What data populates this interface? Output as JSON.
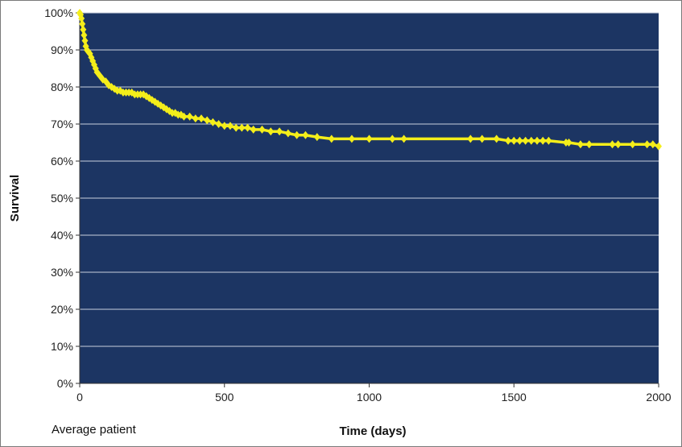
{
  "chart_data": {
    "type": "line",
    "title": "",
    "xlabel": "Time (days)",
    "ylabel": "Survival",
    "annotation": "Average patient",
    "xlim": [
      0,
      2000
    ],
    "ylim": [
      0,
      100
    ],
    "x_ticks": [
      0,
      500,
      1000,
      1500,
      2000
    ],
    "y_ticks": [
      0,
      10,
      20,
      30,
      40,
      50,
      60,
      70,
      80,
      90,
      100
    ],
    "x_tick_labels": [
      "0",
      "500",
      "1000",
      "1500",
      "2000"
    ],
    "y_tick_labels": [
      "0%",
      "10%",
      "20%",
      "30%",
      "40%",
      "50%",
      "60%",
      "70%",
      "80%",
      "90%",
      "100%"
    ],
    "grid": "horizontal",
    "legend": "none",
    "colors": {
      "plot_background": "#1c3563",
      "line": "#f4ee1a",
      "gridline": "#c8cfdc"
    },
    "series": [
      {
        "marker": "diamond",
        "x": [
          0,
          3,
          6,
          9,
          12,
          15,
          18,
          21,
          25,
          30,
          35,
          40,
          45,
          50,
          55,
          60,
          70,
          80,
          90,
          100,
          110,
          120,
          130,
          140,
          150,
          160,
          170,
          180,
          190,
          200,
          210,
          220,
          230,
          240,
          250,
          260,
          270,
          280,
          290,
          300,
          310,
          320,
          330,
          340,
          350,
          360,
          380,
          400,
          420,
          440,
          460,
          480,
          500,
          520,
          540,
          560,
          580,
          600,
          630,
          660,
          690,
          720,
          750,
          780,
          820,
          870,
          940,
          1000,
          1080,
          1120,
          1350,
          1390,
          1440,
          1480,
          1500,
          1520,
          1540,
          1560,
          1580,
          1600,
          1620,
          1680,
          1690,
          1730,
          1760,
          1840,
          1860,
          1910,
          1960,
          1980,
          2000
        ],
        "y": [
          100,
          99.5,
          98.5,
          97,
          95.5,
          94,
          92.5,
          91,
          90,
          89.5,
          89,
          88,
          87,
          86,
          85,
          84,
          83,
          82,
          81.5,
          80.5,
          80,
          79.5,
          79,
          79,
          78.5,
          78.5,
          78.5,
          78.5,
          78,
          78,
          78,
          78,
          77.5,
          77,
          76.5,
          76,
          75.5,
          75,
          74.5,
          74,
          73.5,
          73,
          73,
          72.5,
          72.5,
          72,
          72,
          71.5,
          71.5,
          71,
          70.5,
          70,
          69.5,
          69.5,
          69,
          69,
          69,
          68.5,
          68.5,
          68,
          68,
          67.5,
          67,
          67,
          66.5,
          66,
          66,
          66,
          66,
          66,
          66,
          66,
          66,
          65.5,
          65.5,
          65.5,
          65.5,
          65.5,
          65.5,
          65.5,
          65.5,
          65,
          65,
          64.5,
          64.5,
          64.5,
          64.5,
          64.5,
          64.5,
          64.5,
          64
        ]
      }
    ]
  }
}
